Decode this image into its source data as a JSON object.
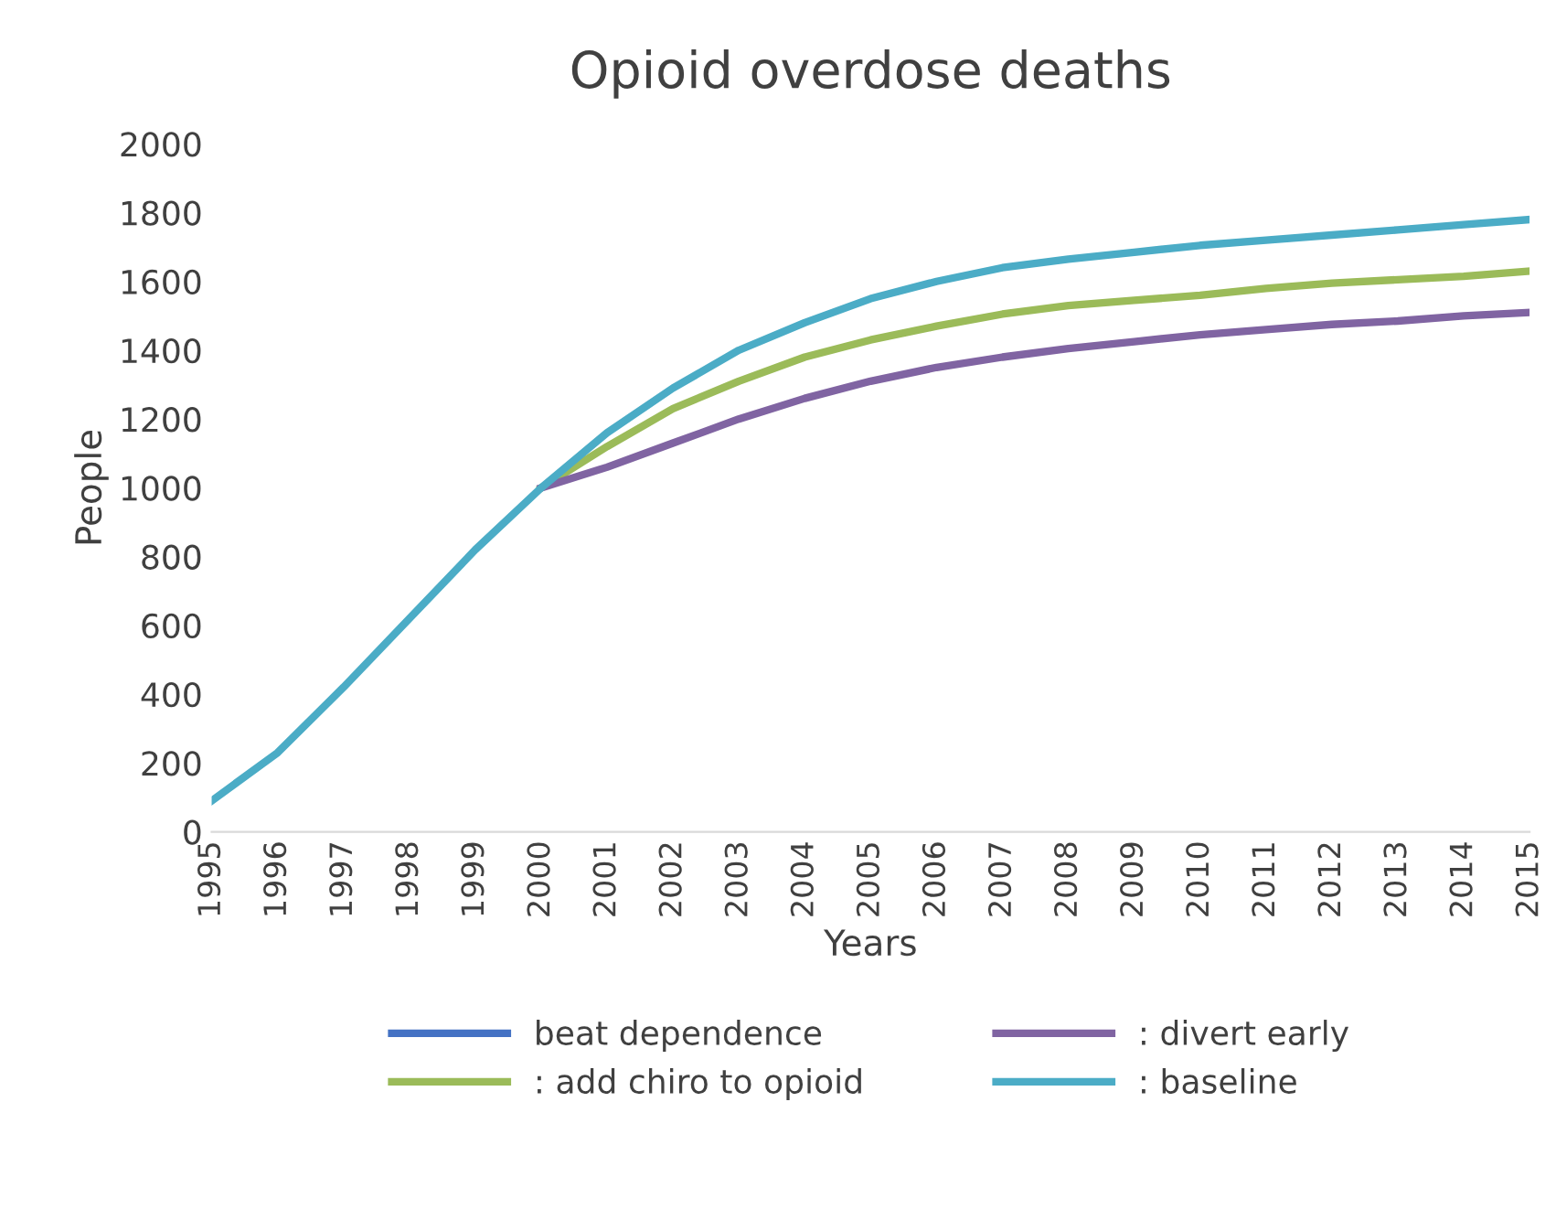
{
  "chart_data": {
    "type": "line",
    "title": "Opioid overdose deaths",
    "xlabel": "Years",
    "ylabel": "People",
    "x": [
      1995,
      1996,
      1997,
      1998,
      1999,
      2000,
      2001,
      2002,
      2003,
      2004,
      2005,
      2006,
      2007,
      2008,
      2009,
      2010,
      2011,
      2012,
      2013,
      2014,
      2015
    ],
    "series": [
      {
        "name": "beat dependence",
        "color": "#4472c4",
        "values": [
          null,
          null,
          null,
          null,
          null,
          null,
          null,
          null,
          null,
          null,
          null,
          null,
          null,
          null,
          null,
          null,
          null,
          null,
          null,
          null,
          null
        ]
      },
      {
        "name": ": add chiro to opioid",
        "color": "#9bbb59",
        "values": [
          null,
          null,
          null,
          null,
          null,
          1000,
          1120,
          1230,
          1310,
          1380,
          1430,
          1470,
          1505,
          1530,
          1545,
          1560,
          1580,
          1595,
          1605,
          1615,
          1630
        ]
      },
      {
        "name": ": divert early",
        "color": "#8064a2",
        "values": [
          null,
          null,
          null,
          null,
          null,
          1000,
          1060,
          1130,
          1200,
          1260,
          1310,
          1350,
          1380,
          1405,
          1425,
          1445,
          1460,
          1475,
          1485,
          1500,
          1510
        ]
      },
      {
        "name": ": baseline",
        "color": "#4bacc6",
        "values": [
          90,
          230,
          420,
          620,
          820,
          1000,
          1160,
          1290,
          1400,
          1480,
          1550,
          1600,
          1640,
          1665,
          1685,
          1705,
          1720,
          1735,
          1750,
          1765,
          1780
        ]
      }
    ],
    "xlim": [
      1995,
      2015
    ],
    "xticks": [
      1995,
      1996,
      1997,
      1998,
      1999,
      2000,
      2001,
      2002,
      2003,
      2004,
      2005,
      2006,
      2007,
      2008,
      2009,
      2010,
      2011,
      2012,
      2013,
      2014,
      2015
    ],
    "ylim": [
      0,
      2000
    ],
    "yticks": [
      0,
      200,
      400,
      600,
      800,
      1000,
      1200,
      1400,
      1600,
      1800,
      2000
    ],
    "grid": false,
    "legend": "bottom",
    "marker": "none",
    "line_style": "solid"
  }
}
